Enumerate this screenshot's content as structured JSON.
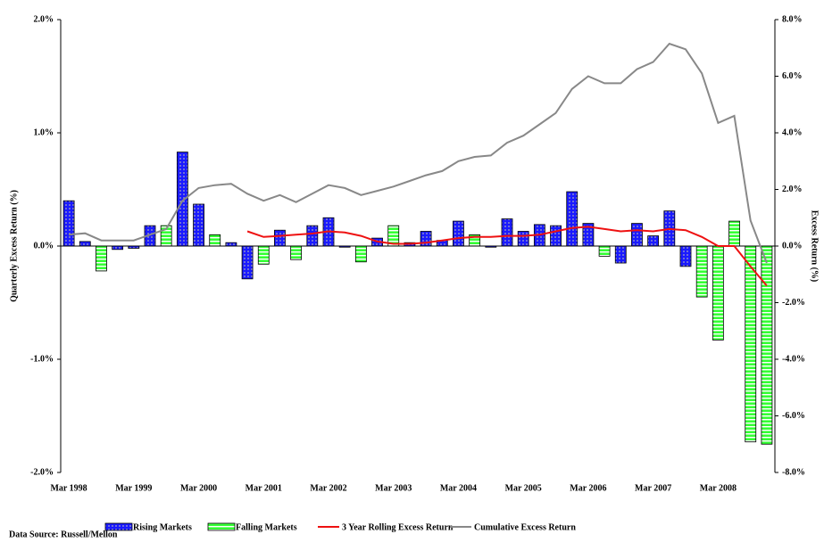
{
  "chart_data": {
    "type": "bar",
    "categories": [
      "Mar 1998",
      null,
      null,
      null,
      "Mar 1999",
      null,
      null,
      null,
      "Mar 2000",
      null,
      null,
      null,
      "Mar 2001",
      null,
      null,
      null,
      "Mar 2002",
      null,
      null,
      null,
      "Mar 2003",
      null,
      null,
      null,
      "Mar 2004",
      null,
      null,
      null,
      "Mar 2005",
      null,
      null,
      null,
      "Mar 2006",
      null,
      null,
      null,
      "Mar 2007",
      null,
      null,
      null,
      "Mar 2008",
      null,
      null,
      null
    ],
    "y_label": "Quarterly Excess Return (%)",
    "y2_label": "Excess Return (%)",
    "source": "Data Source: Russell/Mellon",
    "ylim": [
      -2,
      2
    ],
    "yticks": [
      {
        "value": -2,
        "label": "-2.0%"
      },
      {
        "value": -1,
        "label": "-1.0%"
      },
      {
        "value": 0,
        "label": "0.0%"
      },
      {
        "value": 1,
        "label": "1.0%"
      },
      {
        "value": 2,
        "label": "2.0%"
      }
    ],
    "y2lim": [
      -8,
      8
    ],
    "y2ticks": [
      {
        "value": -8,
        "label": "-8.0%"
      },
      {
        "value": -6,
        "label": "-6.0%"
      },
      {
        "value": -4,
        "label": "-4.0%"
      },
      {
        "value": -2,
        "label": "-2.0%"
      },
      {
        "value": 0,
        "label": "0.0%"
      },
      {
        "value": 2,
        "label": "2.0%"
      },
      {
        "value": 4,
        "label": "4.0%"
      },
      {
        "value": 6,
        "label": "6.0%"
      },
      {
        "value": 8,
        "label": "8.0%"
      }
    ],
    "series": [
      {
        "name": "Rising Markets",
        "type": "bar",
        "color": "#1a1aff",
        "values": [
          0.4,
          0.04,
          null,
          -0.03,
          -0.02,
          0.18,
          null,
          0.83,
          0.37,
          null,
          0.03,
          -0.29,
          null,
          0.14,
          null,
          0.18,
          0.25,
          -0.01,
          null,
          0.07,
          null,
          0.03,
          0.13,
          0.05,
          0.22,
          null,
          -0.01,
          0.24,
          0.13,
          0.19,
          0.18,
          0.48,
          0.2,
          null,
          -0.15,
          0.2,
          0.09,
          0.31,
          -0.18,
          null,
          null,
          null,
          null,
          null
        ]
      },
      {
        "name": "Falling Markets",
        "type": "bar",
        "color": "#33ff33",
        "values": [
          null,
          null,
          -0.22,
          null,
          null,
          null,
          0.18,
          null,
          null,
          0.1,
          null,
          null,
          -0.16,
          null,
          -0.12,
          null,
          null,
          null,
          -0.14,
          null,
          0.18,
          null,
          null,
          null,
          null,
          0.1,
          null,
          null,
          null,
          null,
          null,
          null,
          null,
          -0.09,
          null,
          null,
          null,
          null,
          null,
          -0.45,
          -0.83,
          0.22,
          -1.73,
          -1.75
        ]
      },
      {
        "name": "3 Year Rolling Excess Return",
        "type": "line",
        "color": "#ee1111",
        "values": [
          null,
          null,
          null,
          null,
          null,
          null,
          null,
          null,
          null,
          null,
          null,
          0.13,
          0.08,
          0.09,
          0.1,
          0.11,
          0.13,
          0.12,
          0.09,
          0.04,
          0.02,
          0.02,
          0.03,
          0.05,
          0.07,
          0.08,
          0.08,
          0.09,
          0.09,
          0.1,
          0.13,
          0.16,
          0.17,
          0.15,
          0.13,
          0.14,
          0.13,
          0.15,
          0.14,
          0.08,
          0.0,
          0.0,
          -0.18,
          -0.35
        ]
      },
      {
        "name": "Cumulative Excess Return",
        "type": "line",
        "axis": "y2",
        "color": "#888888",
        "values": [
          0.4,
          0.45,
          0.2,
          0.2,
          0.2,
          0.4,
          0.6,
          1.6,
          2.05,
          2.15,
          2.2,
          1.85,
          1.6,
          1.8,
          1.55,
          1.85,
          2.15,
          2.05,
          1.8,
          1.95,
          2.1,
          2.3,
          2.5,
          2.65,
          3.0,
          3.15,
          3.2,
          3.65,
          3.9,
          4.3,
          4.7,
          5.55,
          6.0,
          5.75,
          5.75,
          6.25,
          6.5,
          7.15,
          6.95,
          6.1,
          4.35,
          4.6,
          0.9,
          -0.6
        ]
      }
    ]
  }
}
